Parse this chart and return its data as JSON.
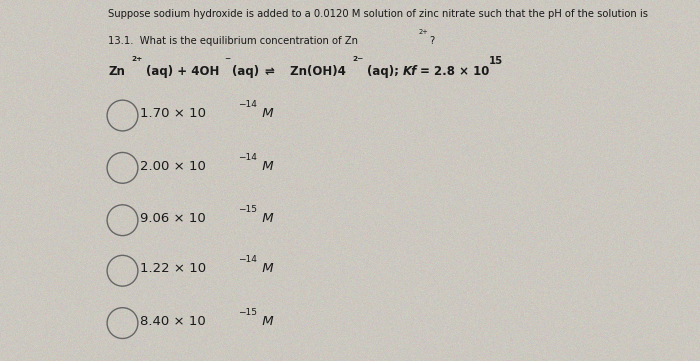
{
  "bg_color": "#ccc8c0",
  "text_color": "#1a1a1a",
  "circle_color": "#666666",
  "figsize": [
    7.0,
    3.61
  ],
  "dpi": 100,
  "line1": "Suppose sodium hydroxide is added to a 0.0120 M solution of zinc nitrate such that the pH of the solution is",
  "line2": "13.1.  What is the equilibrium concentration of Zn",
  "choices": [
    {
      "main": "1.70 × 10",
      "exp": "−14",
      "unit": " M"
    },
    {
      "main": "2.00 × 10",
      "exp": "−14",
      "unit": " M"
    },
    {
      "main": "9.06 × 10",
      "exp": "−15",
      "unit": " M"
    },
    {
      "main": "1.22 × 10",
      "exp": "−14",
      "unit": " M"
    },
    {
      "main": "8.40 × 10",
      "exp": "−15",
      "unit": " M"
    }
  ]
}
